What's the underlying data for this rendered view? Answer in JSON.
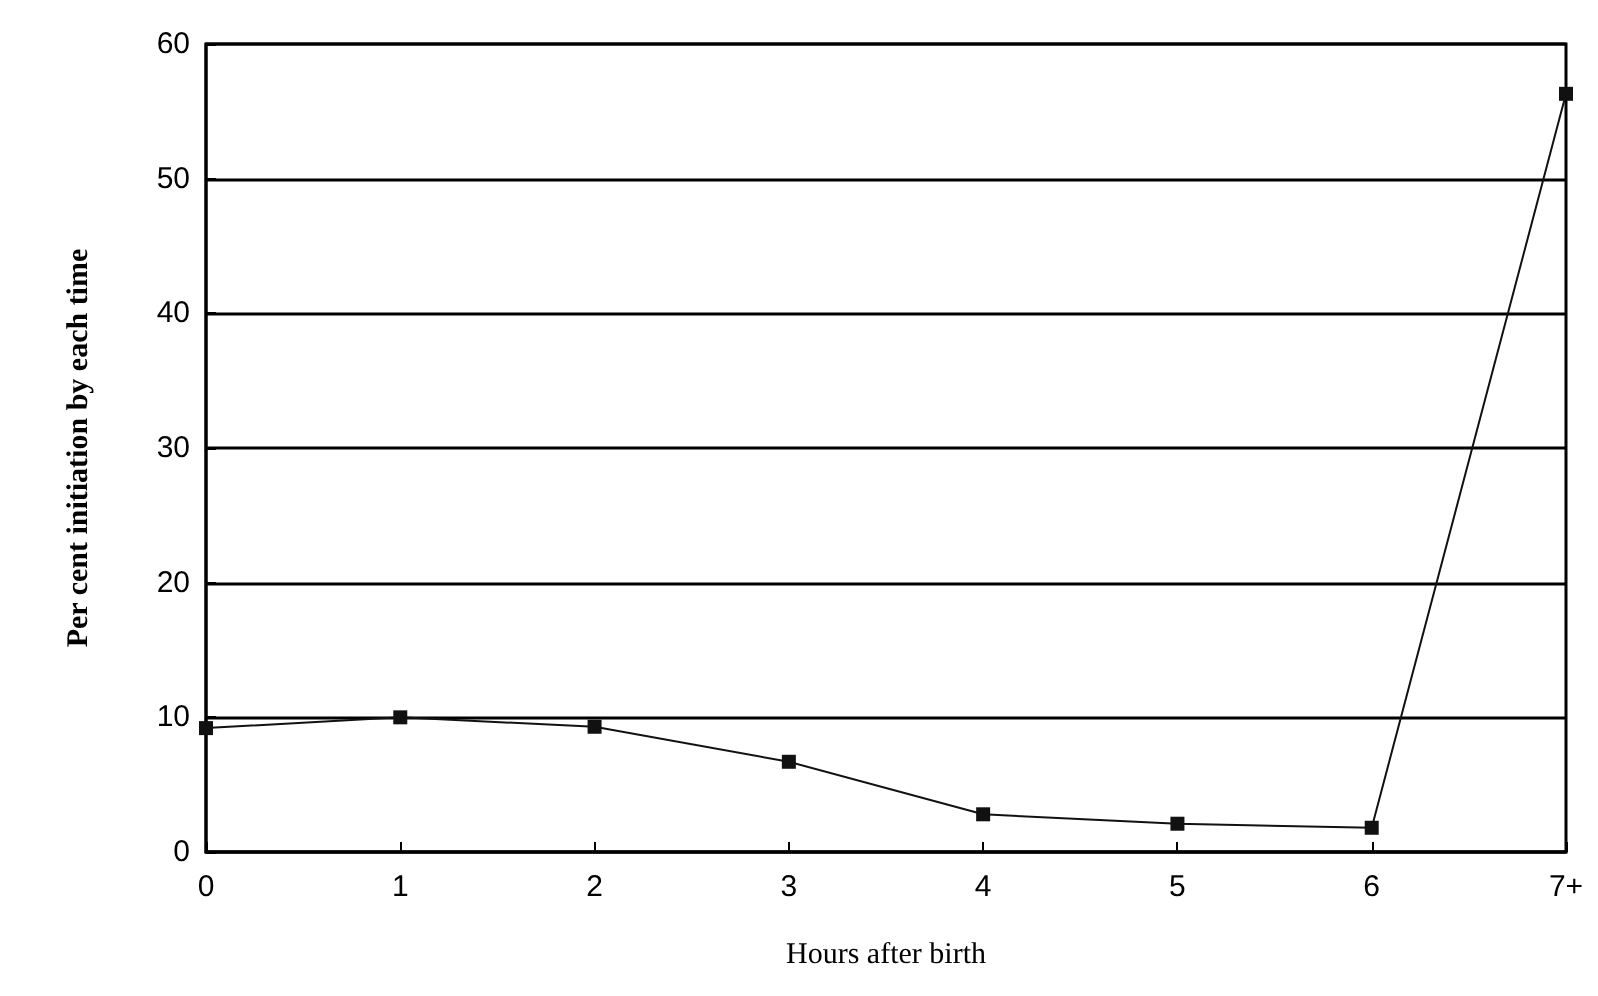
{
  "chart_data": {
    "type": "line",
    "xlabel": "Hours after birth",
    "ylabel": "Per cent initiation by each time",
    "categories": [
      "0",
      "1",
      "2",
      "3",
      "4",
      "5",
      "6",
      "7+"
    ],
    "series": [
      {
        "color": "#111111",
        "values": [
          9.2,
          10,
          9.3,
          6.7,
          2.8,
          2.1,
          1.8,
          56.3
        ]
      }
    ],
    "ylim": [
      0,
      60
    ],
    "yticks": [
      0,
      10,
      20,
      30,
      40,
      50,
      60
    ],
    "grid": "y",
    "marker": "square",
    "line_style": "solid"
  }
}
